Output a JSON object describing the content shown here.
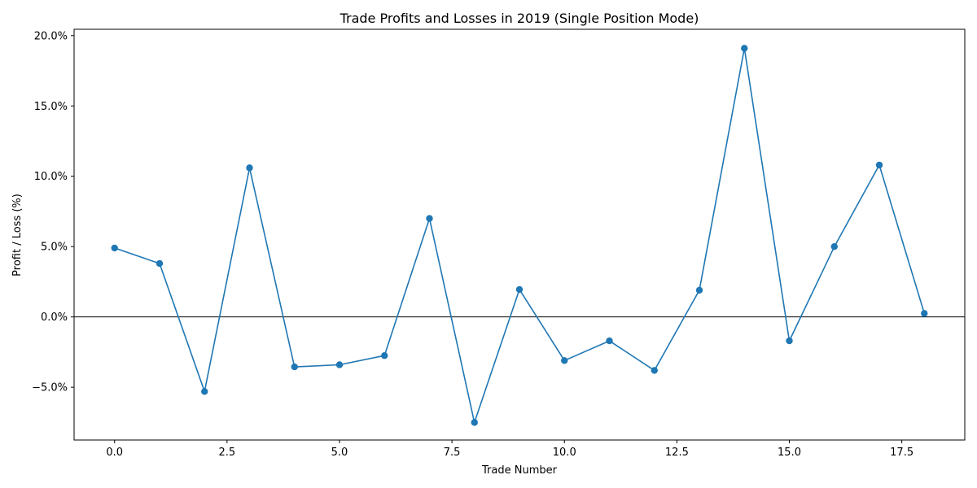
{
  "chart_data": {
    "type": "line",
    "title": "Trade Profits and Losses in 2019 (Single Position Mode)",
    "xlabel": "Trade Number",
    "ylabel": "Profit / Loss (%)",
    "xlim": [
      -0.9,
      18.9
    ],
    "ylim": [
      -8.75,
      20.45
    ],
    "xticks": [
      0.0,
      2.5,
      5.0,
      7.5,
      10.0,
      12.5,
      15.0,
      17.5
    ],
    "xtick_labels": [
      "0.0",
      "2.5",
      "5.0",
      "7.5",
      "10.0",
      "12.5",
      "15.0",
      "17.5"
    ],
    "yticks": [
      -5,
      0,
      5,
      10,
      15,
      20
    ],
    "ytick_labels": [
      "−5.0%",
      "0.0%",
      "5.0%",
      "10.0%",
      "15.0%",
      "20.0%"
    ],
    "reference_line_y": 0,
    "grid": false,
    "series": [
      {
        "color": "#1f77b4",
        "marker": "circle",
        "x": [
          0,
          1,
          2,
          3,
          4,
          5,
          6,
          7,
          8,
          9,
          10,
          11,
          12,
          13,
          14,
          15,
          16,
          17,
          18
        ],
        "y": [
          4.9,
          3.8,
          -5.3,
          10.6,
          -3.55,
          -3.4,
          -2.75,
          7.0,
          -7.5,
          1.95,
          -3.1,
          -1.7,
          -3.8,
          1.9,
          19.1,
          -1.7,
          5.0,
          10.8,
          0.25
        ]
      }
    ]
  }
}
